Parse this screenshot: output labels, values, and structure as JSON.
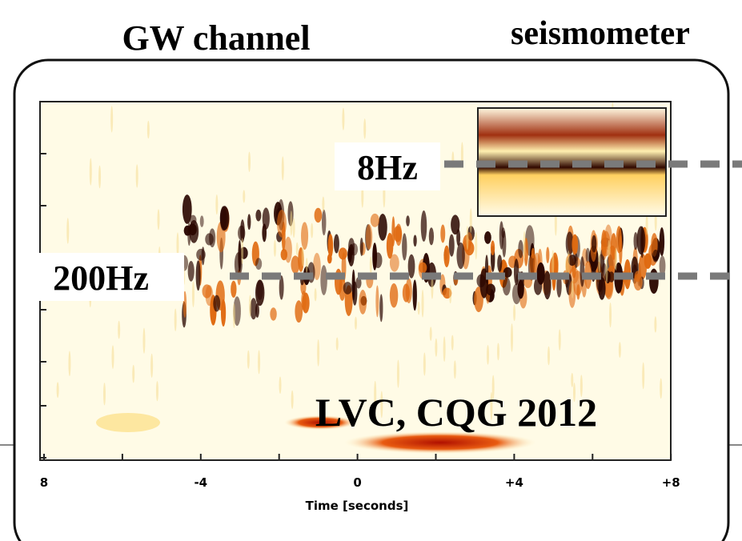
{
  "header": {
    "left_title": "GW channel",
    "right_title": "seismometer"
  },
  "annotations": {
    "low_freq": "8Hz",
    "high_freq": "200Hz",
    "citation": "LVC, CQG 2012"
  },
  "plot": {
    "x_tick_labels": [
      "8",
      "-4",
      "0",
      "+4",
      "+8"
    ],
    "x_axis_label": "Time [seconds]"
  }
}
